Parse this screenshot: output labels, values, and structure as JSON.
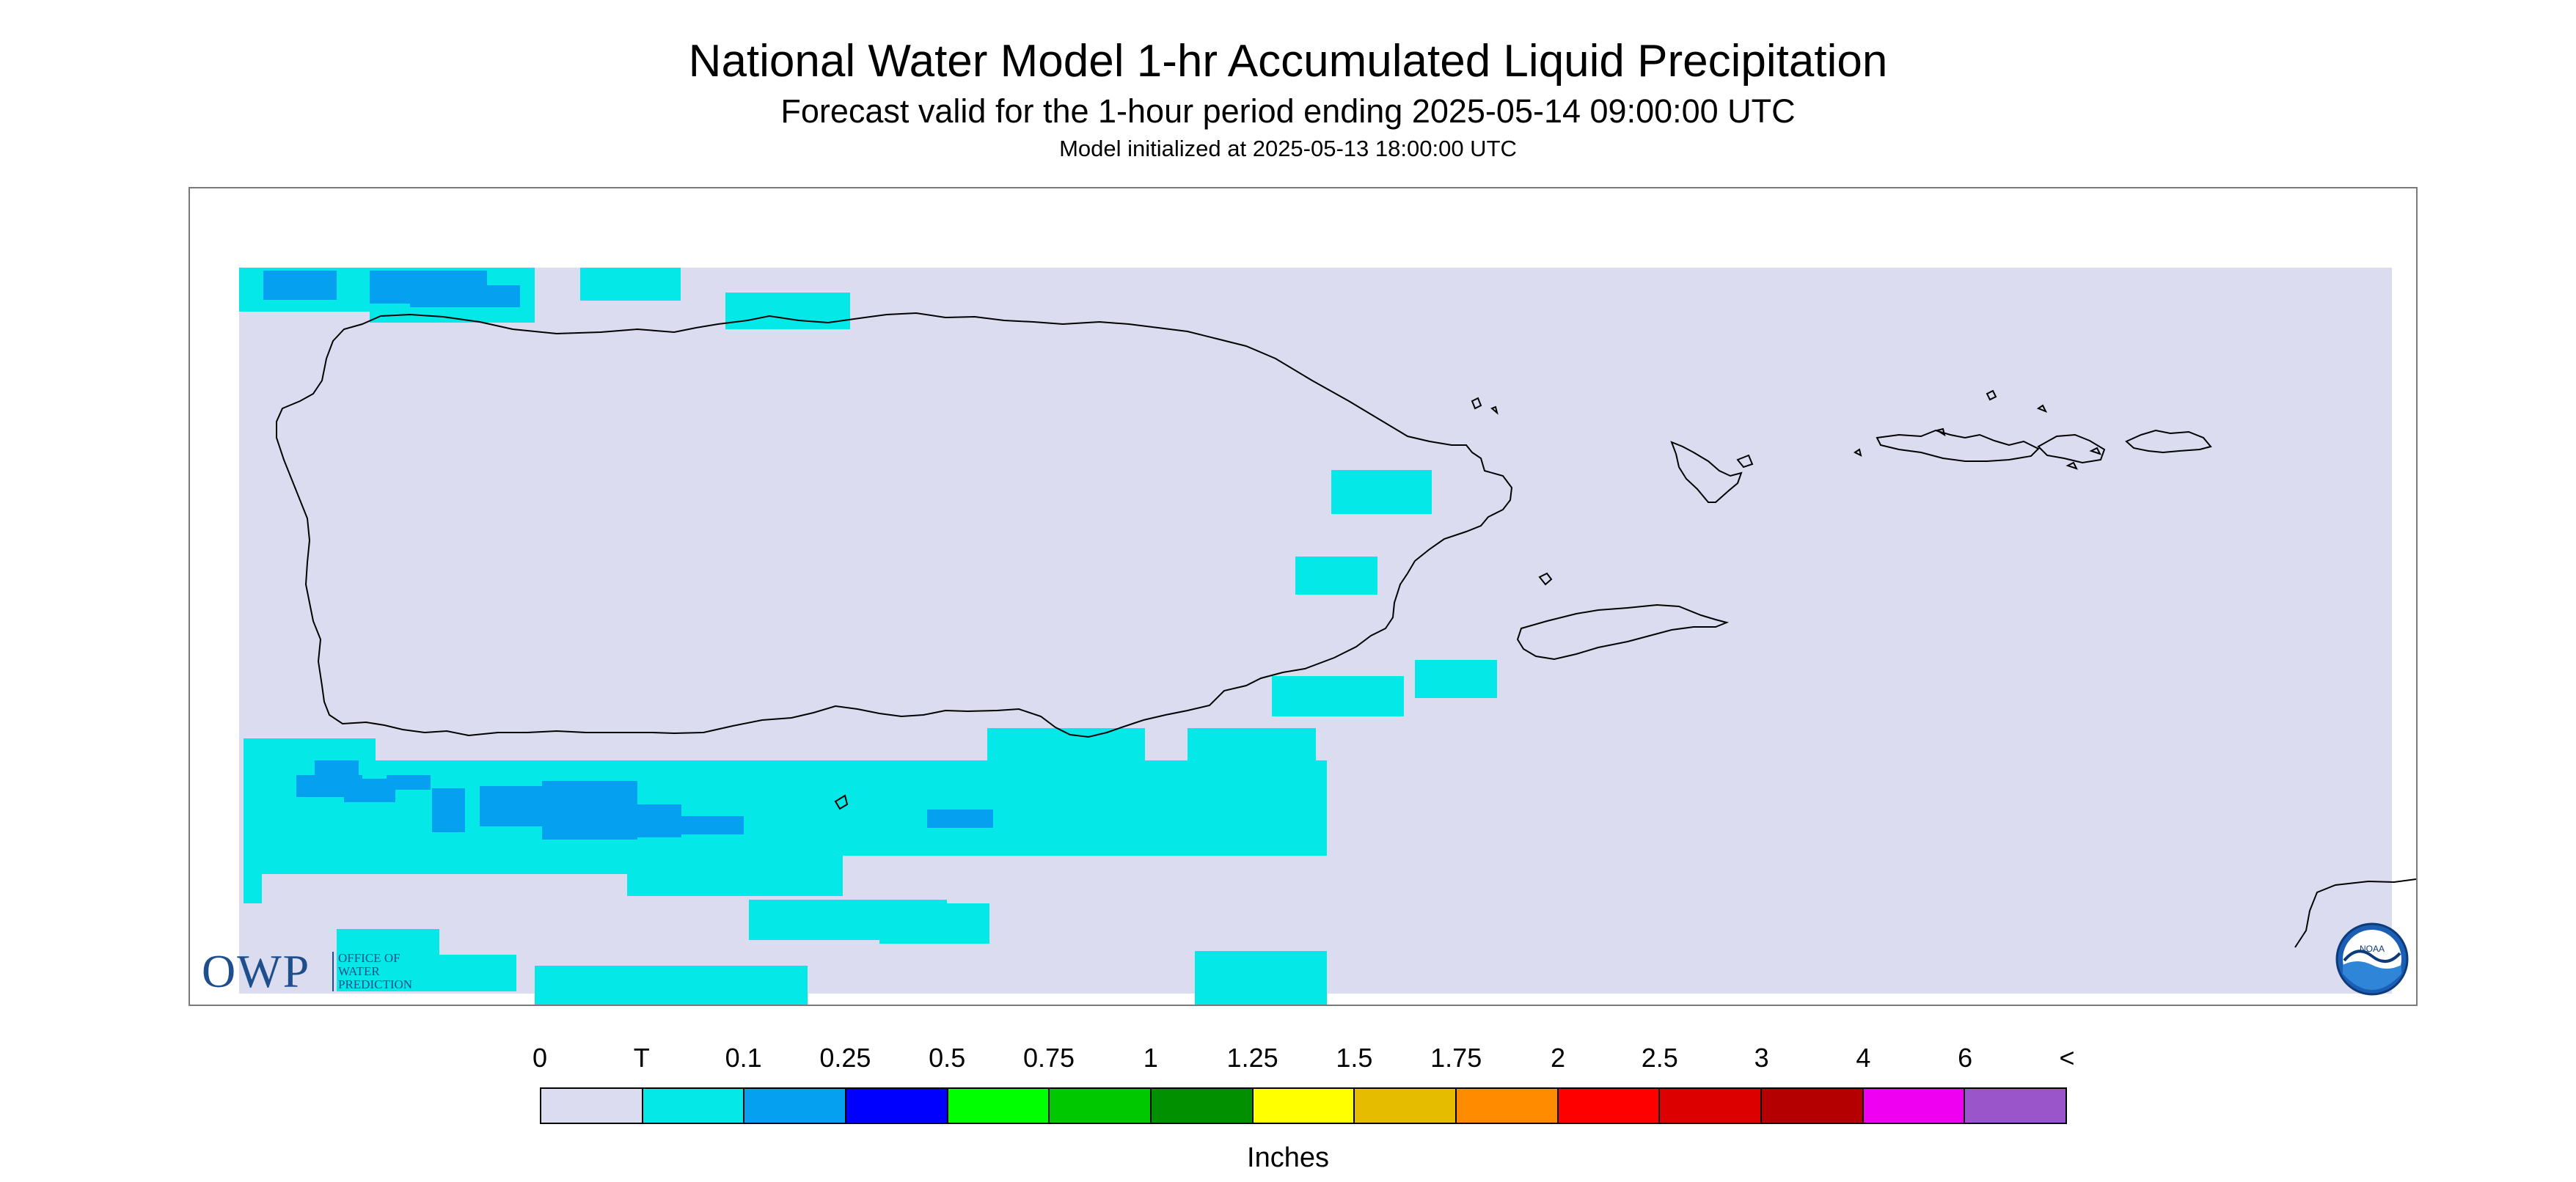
{
  "title": "National Water Model 1-hr Accumulated Liquid Precipitation",
  "subtitle": "Forecast valid for the 1-hour period ending 2025-05-14 09:00:00 UTC",
  "init_line": "Model initialized at 2025-05-13 18:00:00 UTC",
  "colors": {
    "background_field": "#dcdcf0",
    "trace_precip": "#05e8e8",
    "light_precip": "#05a0f0",
    "coastline": "#000000"
  },
  "logos": {
    "owp_letters": "OWP",
    "owp_lines": [
      "OFFICE OF",
      "WATER",
      "PREDICTION"
    ],
    "noaa_text": "NOAA"
  },
  "legend": {
    "units": "Inches",
    "labels": [
      "0",
      "T",
      "0.1",
      "0.25",
      "0.5",
      "0.75",
      "1",
      "1.25",
      "1.5",
      "1.75",
      "2",
      "2.5",
      "3",
      "4",
      "6",
      "<"
    ],
    "colors": [
      "#dcdcf0",
      "#05e8e8",
      "#05a0f0",
      "#0000ff",
      "#00ff00",
      "#00c800",
      "#009000",
      "#ffff00",
      "#e6bc00",
      "#ff8c00",
      "#ff0000",
      "#dc0000",
      "#b40000",
      "#f000f0",
      "#9955c9"
    ]
  }
}
